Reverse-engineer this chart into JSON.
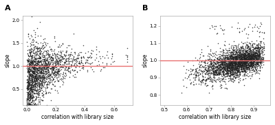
{
  "panel_A": {
    "label": "A",
    "xlabel": "correlation with library size",
    "ylabel": "slope",
    "xlim": [
      -0.03,
      0.73
    ],
    "ylim": [
      0.15,
      2.1
    ],
    "xticks": [
      0.0,
      0.2,
      0.4,
      0.6
    ],
    "yticks": [
      0.5,
      1.0,
      1.5,
      2.0
    ],
    "hline_y": 1.0,
    "hline_color": "#e87070",
    "n_points": 2000
  },
  "panel_B": {
    "label": "B",
    "xlabel": "correlation with library size",
    "ylabel": "slope",
    "xlim": [
      0.48,
      0.975
    ],
    "ylim": [
      0.74,
      1.26
    ],
    "xticks": [
      0.5,
      0.6,
      0.7,
      0.8,
      0.9
    ],
    "yticks": [
      0.8,
      0.9,
      1.0,
      1.1,
      1.2
    ],
    "hline_y": 1.0,
    "hline_color": "#e87070",
    "n_points": 3000
  },
  "dot_color": "#222222",
  "dot_size": 1.2,
  "dot_alpha": 0.85,
  "background_color": "#ffffff",
  "panel_bg": "#ffffff"
}
